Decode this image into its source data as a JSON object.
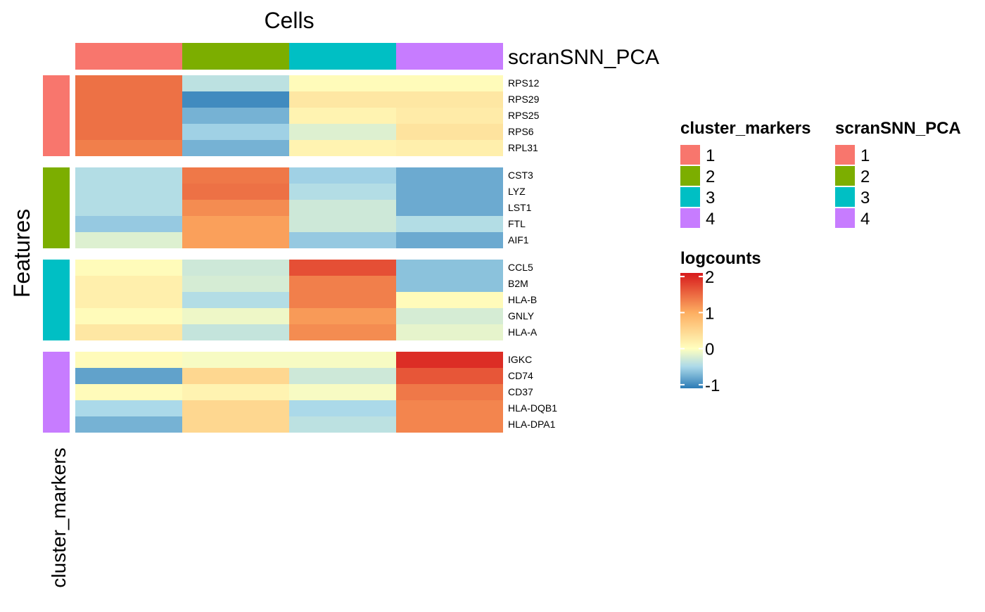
{
  "chart_data": {
    "type": "heatmap",
    "title": "Cells",
    "xlabel": "",
    "ylabel": "Features",
    "col_annotation": {
      "name": "scranSNN_PCA",
      "values": [
        "1",
        "2",
        "3",
        "4"
      ]
    },
    "row_annotation": {
      "name": "cluster_markers",
      "groups": [
        {
          "cluster": "1",
          "genes": [
            "RPS12",
            "RPS29",
            "RPS25",
            "RPS6",
            "RPL31"
          ]
        },
        {
          "cluster": "2",
          "genes": [
            "CST3",
            "LYZ",
            "LST1",
            "FTL",
            "AIF1"
          ]
        },
        {
          "cluster": "3",
          "genes": [
            "CCL5",
            "B2M",
            "HLA-B",
            "GNLY",
            "HLA-A"
          ]
        },
        {
          "cluster": "4",
          "genes": [
            "IGKC",
            "CD74",
            "CD37",
            "HLA-DQB1",
            "HLA-DPA1"
          ]
        }
      ]
    },
    "values": [
      [
        1.45,
        -0.4,
        0.05,
        0.05
      ],
      [
        1.45,
        -1.0,
        0.3,
        0.3
      ],
      [
        1.45,
        -0.75,
        0.15,
        0.25
      ],
      [
        1.45,
        -0.55,
        -0.2,
        0.35
      ],
      [
        1.35,
        -0.75,
        0.15,
        0.2
      ],
      [
        -0.45,
        1.4,
        -0.55,
        -0.8
      ],
      [
        -0.45,
        1.45,
        -0.45,
        -0.8
      ],
      [
        -0.45,
        1.25,
        -0.3,
        -0.8
      ],
      [
        -0.6,
        1.1,
        -0.3,
        -0.45
      ],
      [
        -0.2,
        1.1,
        -0.6,
        -0.8
      ],
      [
        0.05,
        -0.3,
        1.7,
        -0.65
      ],
      [
        0.2,
        -0.25,
        1.35,
        -0.65
      ],
      [
        0.2,
        -0.45,
        1.35,
        0.05
      ],
      [
        0.05,
        -0.1,
        1.15,
        -0.25
      ],
      [
        0.3,
        -0.35,
        1.25,
        -0.15
      ],
      [
        0.05,
        -0.05,
        -0.05,
        1.95
      ],
      [
        -0.85,
        0.5,
        -0.3,
        1.65
      ],
      [
        0.05,
        0.15,
        -0.05,
        1.4
      ],
      [
        -0.5,
        0.5,
        -0.5,
        1.3
      ],
      [
        -0.75,
        0.5,
        -0.4,
        1.3
      ]
    ],
    "legends": {
      "cluster_markers": {
        "title": "cluster_markers",
        "labels": [
          "1",
          "2",
          "3",
          "4"
        ]
      },
      "scranSNN_PCA": {
        "title": "scranSNN_PCA",
        "labels": [
          "1",
          "2",
          "3",
          "4"
        ]
      },
      "logcounts": {
        "title": "logcounts",
        "ticks": [
          2,
          1,
          0,
          -1
        ],
        "range": [
          -1.1,
          2.1
        ]
      }
    },
    "colors": {
      "cluster": {
        "1": "#F8766D",
        "2": "#7CAE00",
        "3": "#00BFC4",
        "4": "#C77CFF"
      },
      "scale": [
        "#2C7BB6",
        "#ABD9E9",
        "#FFFFBF",
        "#FDAE61",
        "#D7191C"
      ]
    }
  }
}
